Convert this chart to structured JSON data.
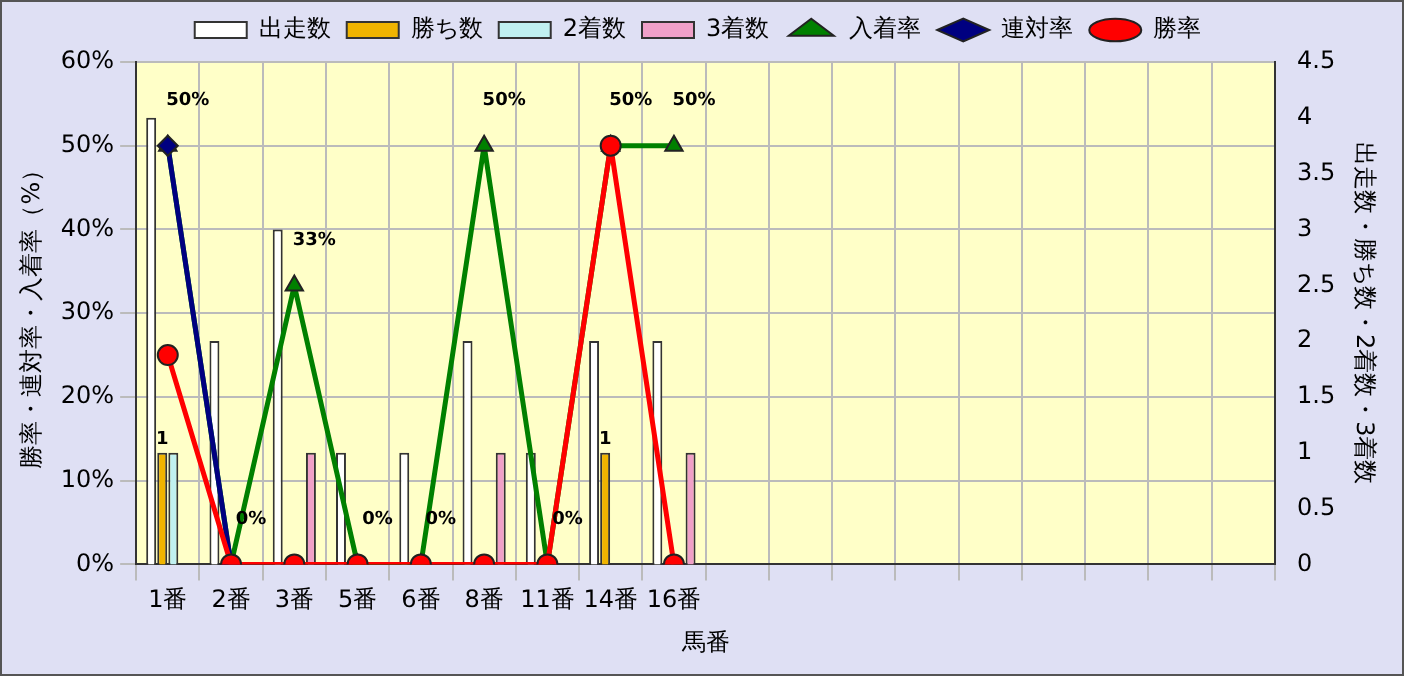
{
  "chart_data": {
    "type": "bar",
    "xlabel": "馬番",
    "ylabel": "勝率・連対率・入着率（%）",
    "y2label": "出走数・勝ち数・2着数・3着数",
    "categories": [
      "1番",
      "2番",
      "3番",
      "5番",
      "6番",
      "8番",
      "11番",
      "14番",
      "16番",
      null,
      null,
      null,
      null,
      null,
      null,
      null,
      null,
      null
    ],
    "series": [
      {
        "name": "出走数",
        "axis": "y2",
        "color": "#ffffff",
        "values": [
          4,
          2,
          3,
          1,
          1,
          2,
          1,
          2,
          2,
          null,
          null,
          null,
          null,
          null,
          null,
          null,
          null,
          null
        ]
      },
      {
        "name": "勝ち数",
        "axis": "y2",
        "color": "#f0b400",
        "values": [
          1,
          0,
          0,
          0,
          0,
          0,
          0,
          1,
          0,
          null,
          null,
          null,
          null,
          null,
          null,
          null,
          null,
          null
        ],
        "value_labels": [
          "1",
          null,
          null,
          null,
          null,
          null,
          null,
          "1",
          null,
          null,
          null,
          null,
          null,
          null,
          null,
          null,
          null,
          null
        ]
      },
      {
        "name": "2着数",
        "axis": "y2",
        "color": "#c0f0f0",
        "values": [
          1,
          0,
          0,
          0,
          0,
          0,
          0,
          0,
          0,
          null,
          null,
          null,
          null,
          null,
          null,
          null,
          null,
          null
        ]
      },
      {
        "name": "3着数",
        "axis": "y2",
        "color": "#f0a0c8",
        "values": [
          0,
          0,
          1,
          0,
          0,
          1,
          0,
          0,
          1,
          null,
          null,
          null,
          null,
          null,
          null,
          null,
          null,
          null
        ]
      },
      {
        "name": "入着率",
        "type": "line",
        "color": "#008000",
        "marker": "triangle",
        "values": [
          50,
          0,
          33.3,
          0,
          0,
          50,
          0,
          50,
          50,
          null,
          null,
          null,
          null,
          null,
          null,
          null,
          null,
          null
        ],
        "value_labels": [
          "50%",
          "0%",
          "33%",
          "0%",
          "0%",
          "50%",
          "0%",
          "50%",
          "50%",
          null,
          null,
          null,
          null,
          null,
          null,
          null,
          null,
          null
        ]
      },
      {
        "name": "連対率",
        "type": "line",
        "color": "#000080",
        "marker": "diamond",
        "values": [
          50,
          0,
          null,
          null,
          null,
          null,
          null,
          null,
          null,
          null,
          null,
          null,
          null,
          null,
          null,
          null,
          null,
          null
        ]
      },
      {
        "name": "勝率",
        "type": "line",
        "color": "#ff0000",
        "marker": "circle",
        "values": [
          25,
          0,
          0,
          0,
          0,
          0,
          0,
          50,
          0,
          null,
          null,
          null,
          null,
          null,
          null,
          null,
          null,
          null
        ]
      }
    ],
    "ylim": [
      0,
      60
    ],
    "yticks": [
      {
        "value": 0,
        "label": "0%"
      },
      {
        "value": 10,
        "label": "10%"
      },
      {
        "value": 20,
        "label": "20%"
      },
      {
        "value": 30,
        "label": "30%"
      },
      {
        "value": 40,
        "label": "40%"
      },
      {
        "value": 50,
        "label": "50%"
      },
      {
        "value": 60,
        "label": "60%"
      }
    ],
    "y2lim": [
      0,
      4.5
    ],
    "y2ticks": [
      0,
      0.5,
      1,
      1.5,
      2,
      2.5,
      3,
      3.5,
      4,
      4.5
    ],
    "grid": true,
    "legend": "top"
  }
}
